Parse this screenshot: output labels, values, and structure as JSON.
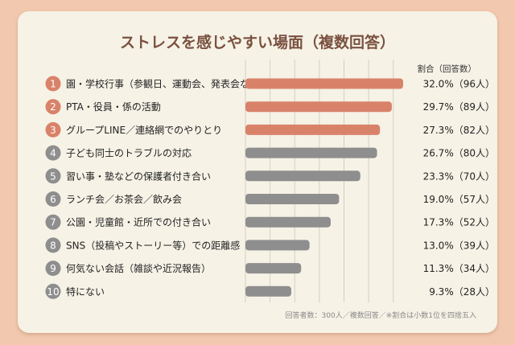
{
  "chart_data": {
    "type": "bar",
    "orientation": "horizontal",
    "title": "ストレスを感じやすい場面（複数回答）",
    "value_header": "割合（回答数）",
    "categories": [
      "園・学校行事（参観日、運動会、発表会など）",
      "PTA・役員・係の活動",
      "グループLINE／連絡網でのやりとり",
      "子ども同士のトラブルの対応",
      "習い事・塾などの保護者付き合い",
      "ランチ会／お茶会／飲み会",
      "公園・児童館・近所での付き合い",
      "SNS（投稿やストーリー等）での距離感",
      "何気ない会話（雑談や近況報告）",
      "特にない"
    ],
    "ranks": [
      "1",
      "2",
      "3",
      "4",
      "5",
      "6",
      "7",
      "8",
      "9",
      "10"
    ],
    "values": [
      32.0,
      29.7,
      27.3,
      26.7,
      23.3,
      19.0,
      17.3,
      13.0,
      11.3,
      9.3
    ],
    "counts": [
      96,
      89,
      82,
      80,
      70,
      57,
      52,
      39,
      34,
      28
    ],
    "value_labels": [
      "32.0%（96人）",
      "29.7%（89人）",
      "27.3%（82人）",
      "26.7%（80人）",
      "23.3%（70人）",
      "19.0%（57人）",
      "17.3%（52人）",
      "13.0%（39人）",
      "11.3%（34人）",
      "9.3%（28人）"
    ],
    "highlight_top": 3,
    "colors": {
      "highlight": "#d9826a",
      "default": "#8e8e8e",
      "title": "#7a5140",
      "background": "#f2c8ae",
      "card": "#f6f2e6"
    },
    "xlim": [
      0,
      32
    ],
    "grid": true,
    "footnote": "回答者数：300人／複数回答／※割合は小数1位を四捨五入"
  }
}
